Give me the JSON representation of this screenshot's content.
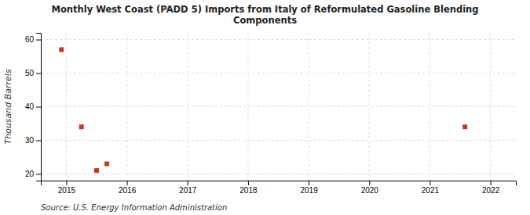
{
  "chart_data": {
    "type": "scatter",
    "title": "Monthly West Coast (PADD 5) Imports from Italy of Reformulated Gasoline Blending\nComponents",
    "ylabel": "Thousand Barrels",
    "source": "Source: U.S. Energy Information Administration",
    "color": "#c0392b",
    "marker": "square",
    "grid": true,
    "x": [
      2014.92,
      2015.25,
      2015.5,
      2015.67,
      2021.58
    ],
    "values": [
      57,
      34,
      21,
      23,
      34
    ],
    "xlim": [
      2014.58,
      2022.42
    ],
    "ylim": [
      18,
      62
    ],
    "xticks": [
      2015,
      2016,
      2017,
      2018,
      2019,
      2020,
      2021,
      2022
    ],
    "yticks": [
      20,
      30,
      40,
      50,
      60
    ]
  }
}
